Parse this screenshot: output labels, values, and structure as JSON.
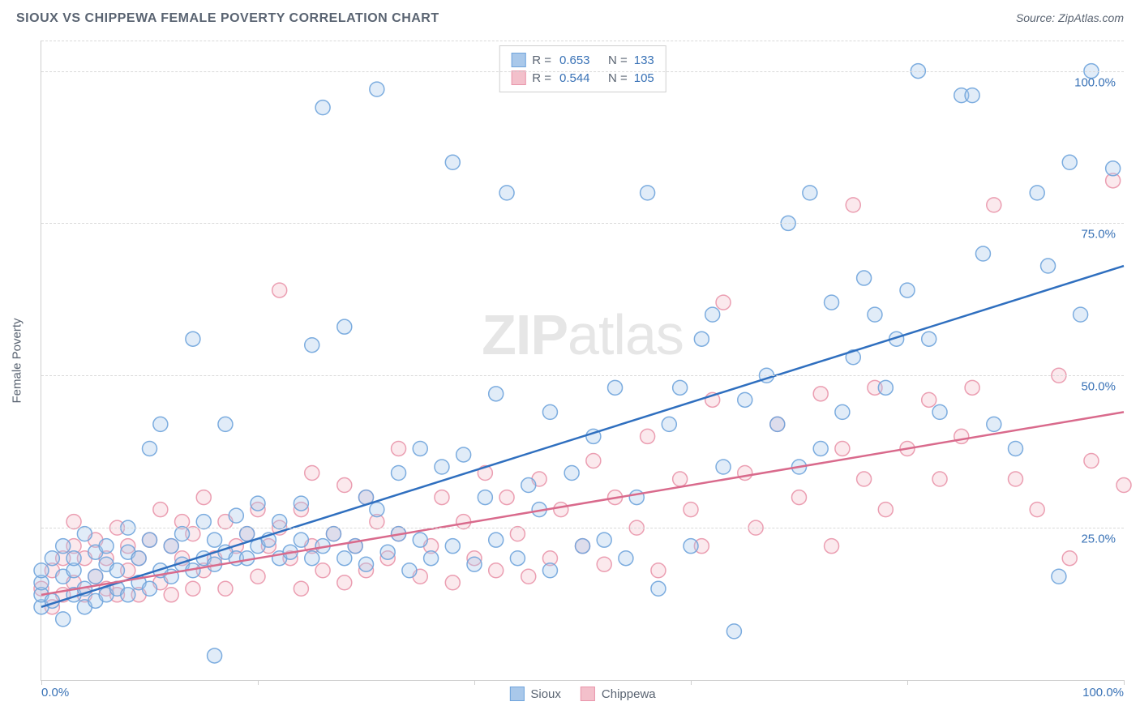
{
  "title": "SIOUX VS CHIPPEWA FEMALE POVERTY CORRELATION CHART",
  "source": "Source: ZipAtlas.com",
  "yaxis_title": "Female Poverty",
  "watermark_a": "ZIP",
  "watermark_b": "atlas",
  "chart": {
    "type": "scatter",
    "xlim": [
      0,
      100
    ],
    "ylim": [
      0,
      105
    ],
    "grid_dash": "4,4",
    "grid_color": "#d9d9d9",
    "axis_color": "#cfcfcf",
    "y_ticks": [
      25,
      50,
      75,
      100
    ],
    "y_tick_labels": [
      "25.0%",
      "50.0%",
      "75.0%",
      "100.0%"
    ],
    "x_ticks": [
      0,
      20,
      40,
      60,
      80,
      100
    ],
    "x_tick_labels_shown": {
      "0": "0.0%",
      "100": "100.0%"
    },
    "marker_radius": 9,
    "marker_fill_opacity": 0.35,
    "marker_stroke_opacity": 0.9,
    "line_width": 2.5,
    "series": [
      {
        "name": "Sioux",
        "color_fill": "#a9c8ea",
        "color_stroke": "#6fa4dc",
        "line_color": "#2f6fbf",
        "R": "0.653",
        "N": "133",
        "trend": {
          "x1": 0,
          "y1": 12,
          "x2": 100,
          "y2": 68
        },
        "points": [
          [
            0,
            12
          ],
          [
            0,
            14
          ],
          [
            0,
            16
          ],
          [
            0,
            18
          ],
          [
            1,
            13
          ],
          [
            1,
            20
          ],
          [
            2,
            10
          ],
          [
            2,
            17
          ],
          [
            2,
            22
          ],
          [
            3,
            14
          ],
          [
            3,
            18
          ],
          [
            3,
            20
          ],
          [
            4,
            12
          ],
          [
            4,
            15
          ],
          [
            4,
            24
          ],
          [
            5,
            13
          ],
          [
            5,
            17
          ],
          [
            5,
            21
          ],
          [
            6,
            14
          ],
          [
            6,
            19
          ],
          [
            6,
            22
          ],
          [
            7,
            15
          ],
          [
            7,
            18
          ],
          [
            8,
            14
          ],
          [
            8,
            21
          ],
          [
            8,
            25
          ],
          [
            9,
            16
          ],
          [
            9,
            20
          ],
          [
            10,
            15
          ],
          [
            10,
            23
          ],
          [
            10,
            38
          ],
          [
            11,
            18
          ],
          [
            11,
            42
          ],
          [
            12,
            17
          ],
          [
            12,
            22
          ],
          [
            13,
            19
          ],
          [
            13,
            24
          ],
          [
            14,
            18
          ],
          [
            14,
            56
          ],
          [
            15,
            20
          ],
          [
            15,
            26
          ],
          [
            16,
            4
          ],
          [
            16,
            19
          ],
          [
            16,
            23
          ],
          [
            17,
            21
          ],
          [
            17,
            42
          ],
          [
            18,
            20
          ],
          [
            18,
            27
          ],
          [
            19,
            20
          ],
          [
            19,
            24
          ],
          [
            20,
            22
          ],
          [
            20,
            29
          ],
          [
            21,
            23
          ],
          [
            22,
            20
          ],
          [
            22,
            26
          ],
          [
            23,
            21
          ],
          [
            24,
            23
          ],
          [
            24,
            29
          ],
          [
            25,
            20
          ],
          [
            25,
            55
          ],
          [
            26,
            22
          ],
          [
            26,
            94
          ],
          [
            27,
            24
          ],
          [
            28,
            20
          ],
          [
            28,
            58
          ],
          [
            29,
            22
          ],
          [
            30,
            19
          ],
          [
            30,
            30
          ],
          [
            31,
            28
          ],
          [
            31,
            97
          ],
          [
            32,
            21
          ],
          [
            33,
            24
          ],
          [
            33,
            34
          ],
          [
            34,
            18
          ],
          [
            35,
            23
          ],
          [
            35,
            38
          ],
          [
            36,
            20
          ],
          [
            37,
            35
          ],
          [
            38,
            22
          ],
          [
            38,
            85
          ],
          [
            39,
            37
          ],
          [
            40,
            19
          ],
          [
            41,
            30
          ],
          [
            42,
            23
          ],
          [
            42,
            47
          ],
          [
            43,
            80
          ],
          [
            44,
            20
          ],
          [
            45,
            32
          ],
          [
            46,
            28
          ],
          [
            47,
            18
          ],
          [
            47,
            44
          ],
          [
            49,
            34
          ],
          [
            50,
            22
          ],
          [
            51,
            40
          ],
          [
            52,
            23
          ],
          [
            53,
            48
          ],
          [
            54,
            20
          ],
          [
            55,
            30
          ],
          [
            56,
            80
          ],
          [
            57,
            15
          ],
          [
            58,
            42
          ],
          [
            59,
            48
          ],
          [
            60,
            22
          ],
          [
            61,
            56
          ],
          [
            62,
            60
          ],
          [
            63,
            35
          ],
          [
            64,
            8
          ],
          [
            65,
            46
          ],
          [
            67,
            50
          ],
          [
            68,
            42
          ],
          [
            69,
            75
          ],
          [
            70,
            35
          ],
          [
            71,
            80
          ],
          [
            72,
            38
          ],
          [
            73,
            62
          ],
          [
            74,
            44
          ],
          [
            75,
            53
          ],
          [
            76,
            66
          ],
          [
            77,
            60
          ],
          [
            78,
            48
          ],
          [
            79,
            56
          ],
          [
            80,
            64
          ],
          [
            81,
            100
          ],
          [
            82,
            56
          ],
          [
            83,
            44
          ],
          [
            85,
            96
          ],
          [
            86,
            96
          ],
          [
            87,
            70
          ],
          [
            88,
            42
          ],
          [
            90,
            38
          ],
          [
            92,
            80
          ],
          [
            93,
            68
          ],
          [
            94,
            17
          ],
          [
            95,
            85
          ],
          [
            96,
            60
          ],
          [
            97,
            100
          ],
          [
            99,
            84
          ]
        ]
      },
      {
        "name": "Chippewa",
        "color_fill": "#f3c0cb",
        "color_stroke": "#e995aa",
        "line_color": "#d96a8c",
        "R": "0.544",
        "N": "105",
        "trend": {
          "x1": 0,
          "y1": 14,
          "x2": 100,
          "y2": 44
        },
        "points": [
          [
            0,
            15
          ],
          [
            1,
            12
          ],
          [
            1,
            18
          ],
          [
            2,
            14
          ],
          [
            2,
            20
          ],
          [
            3,
            16
          ],
          [
            3,
            22
          ],
          [
            3,
            26
          ],
          [
            4,
            14
          ],
          [
            4,
            20
          ],
          [
            5,
            17
          ],
          [
            5,
            23
          ],
          [
            6,
            15
          ],
          [
            6,
            20
          ],
          [
            7,
            14
          ],
          [
            7,
            25
          ],
          [
            8,
            18
          ],
          [
            8,
            22
          ],
          [
            9,
            14
          ],
          [
            9,
            20
          ],
          [
            10,
            23
          ],
          [
            11,
            16
          ],
          [
            11,
            28
          ],
          [
            12,
            14
          ],
          [
            12,
            22
          ],
          [
            13,
            20
          ],
          [
            13,
            26
          ],
          [
            14,
            15
          ],
          [
            14,
            24
          ],
          [
            15,
            18
          ],
          [
            15,
            30
          ],
          [
            16,
            20
          ],
          [
            17,
            15
          ],
          [
            17,
            26
          ],
          [
            18,
            22
          ],
          [
            19,
            24
          ],
          [
            20,
            17
          ],
          [
            20,
            28
          ],
          [
            21,
            22
          ],
          [
            22,
            25
          ],
          [
            22,
            64
          ],
          [
            23,
            20
          ],
          [
            24,
            15
          ],
          [
            24,
            28
          ],
          [
            25,
            22
          ],
          [
            25,
            34
          ],
          [
            26,
            18
          ],
          [
            27,
            24
          ],
          [
            28,
            16
          ],
          [
            28,
            32
          ],
          [
            29,
            22
          ],
          [
            30,
            18
          ],
          [
            30,
            30
          ],
          [
            31,
            26
          ],
          [
            32,
            20
          ],
          [
            33,
            24
          ],
          [
            33,
            38
          ],
          [
            35,
            17
          ],
          [
            36,
            22
          ],
          [
            37,
            30
          ],
          [
            38,
            16
          ],
          [
            39,
            26
          ],
          [
            40,
            20
          ],
          [
            41,
            34
          ],
          [
            42,
            18
          ],
          [
            43,
            30
          ],
          [
            44,
            24
          ],
          [
            45,
            17
          ],
          [
            46,
            33
          ],
          [
            47,
            20
          ],
          [
            48,
            28
          ],
          [
            50,
            22
          ],
          [
            51,
            36
          ],
          [
            52,
            19
          ],
          [
            53,
            30
          ],
          [
            55,
            25
          ],
          [
            56,
            40
          ],
          [
            57,
            18
          ],
          [
            59,
            33
          ],
          [
            60,
            28
          ],
          [
            61,
            22
          ],
          [
            62,
            46
          ],
          [
            63,
            62
          ],
          [
            65,
            34
          ],
          [
            66,
            25
          ],
          [
            68,
            42
          ],
          [
            70,
            30
          ],
          [
            72,
            47
          ],
          [
            73,
            22
          ],
          [
            74,
            38
          ],
          [
            75,
            78
          ],
          [
            76,
            33
          ],
          [
            77,
            48
          ],
          [
            78,
            28
          ],
          [
            80,
            38
          ],
          [
            82,
            46
          ],
          [
            83,
            33
          ],
          [
            85,
            40
          ],
          [
            86,
            48
          ],
          [
            88,
            78
          ],
          [
            90,
            33
          ],
          [
            92,
            28
          ],
          [
            94,
            50
          ],
          [
            95,
            20
          ],
          [
            97,
            36
          ],
          [
            99,
            82
          ],
          [
            100,
            32
          ]
        ]
      }
    ]
  },
  "colors": {
    "title_text": "#5a6472",
    "value_text": "#3972b6",
    "background": "#ffffff"
  },
  "legend": {
    "series1": "Sioux",
    "series2": "Chippewa"
  }
}
